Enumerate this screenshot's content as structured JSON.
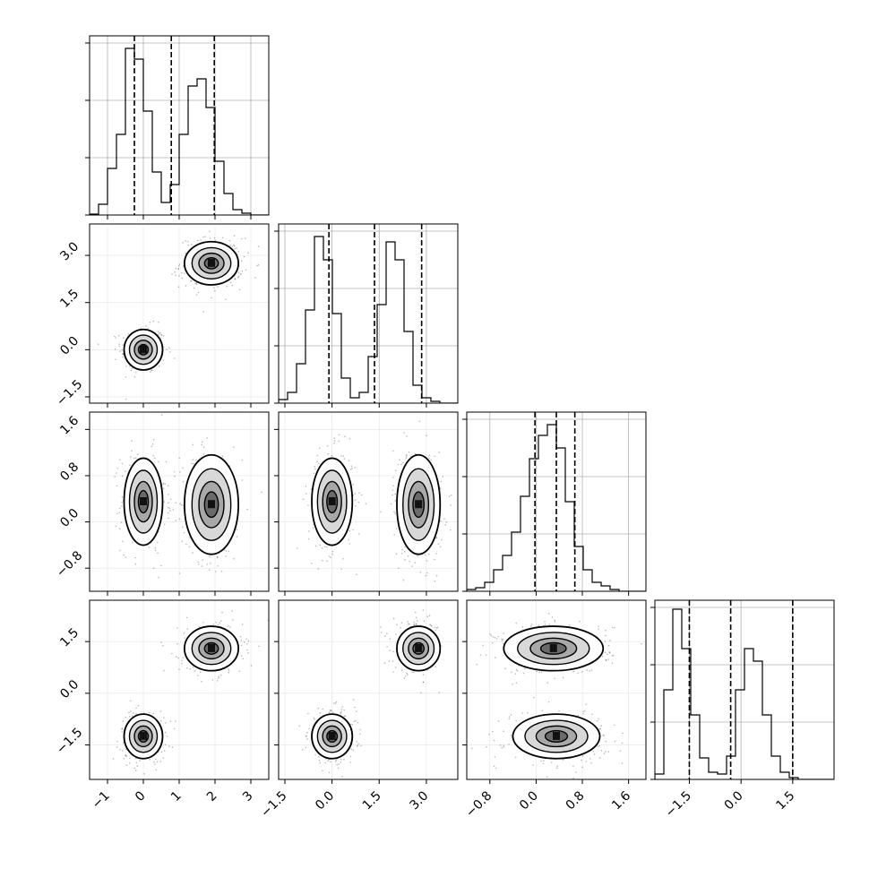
{
  "chart_data": {
    "type": "corner",
    "grid": true,
    "ranges": [
      [
        -1.5,
        3.5
      ],
      [
        -1.7,
        4.0
      ],
      [
        -1.2,
        1.9
      ],
      [
        -2.5,
        2.7
      ]
    ],
    "ticks": [
      {
        "values": [
          -1,
          0,
          1,
          2,
          3
        ],
        "labels": [
          "−1",
          "0",
          "1",
          "2",
          "3"
        ]
      },
      {
        "values": [
          -1.5,
          0.0,
          1.5,
          3.0
        ],
        "labels": [
          "−1.5",
          "0.0",
          "1.5",
          "3.0"
        ]
      },
      {
        "values": [
          -0.8,
          0.0,
          0.8,
          1.6
        ],
        "labels": [
          "−0.8",
          "0.0",
          "0.8",
          "1.6"
        ]
      },
      {
        "values": [
          -1.5,
          0.0,
          1.5
        ],
        "labels": [
          "−1.5",
          "0.0",
          "1.5"
        ]
      }
    ],
    "histograms": [
      {
        "bin_start": -1.5,
        "bin_width": 0.25,
        "counts": [
          0.005,
          0.06,
          0.26,
          0.45,
          0.93,
          0.87,
          0.58,
          0.24,
          0.07,
          0.17,
          0.45,
          0.72,
          0.76,
          0.6,
          0.3,
          0.12,
          0.03,
          0.01,
          0.0,
          0.0
        ],
        "quantiles": [
          -0.25,
          0.78,
          1.98
        ]
      },
      {
        "bin_start": -1.7,
        "bin_width": 0.285,
        "counts": [
          0.02,
          0.06,
          0.22,
          0.52,
          0.93,
          0.8,
          0.5,
          0.14,
          0.03,
          0.06,
          0.26,
          0.55,
          0.9,
          0.8,
          0.4,
          0.1,
          0.03,
          0.01,
          0.0,
          0.0
        ],
        "quantiles": [
          -0.1,
          1.35,
          2.85
        ]
      },
      {
        "bin_start": -1.2,
        "bin_width": 0.155,
        "counts": [
          0.01,
          0.02,
          0.05,
          0.12,
          0.2,
          0.33,
          0.53,
          0.74,
          0.87,
          0.93,
          0.8,
          0.5,
          0.25,
          0.12,
          0.05,
          0.03,
          0.01,
          0.0,
          0.0,
          0.0
        ],
        "quantiles": [
          -0.02,
          0.35,
          0.67
        ]
      },
      {
        "bin_start": -2.5,
        "bin_width": 0.26,
        "counts": [
          0.03,
          0.5,
          0.95,
          0.73,
          0.36,
          0.12,
          0.04,
          0.03,
          0.13,
          0.5,
          0.73,
          0.66,
          0.36,
          0.13,
          0.04,
          0.01,
          0.0,
          0.0,
          0.0,
          0.0
        ],
        "quantiles": [
          -1.5,
          -0.3,
          1.5
        ]
      }
    ],
    "mixture": [
      {
        "weight": 0.5,
        "mean": [
          0.0,
          0.0,
          0.35,
          -1.25
        ],
        "sd": [
          0.25,
          0.3,
          0.35,
          0.3
        ]
      },
      {
        "weight": 0.5,
        "mean": [
          1.9,
          2.75,
          0.3,
          1.3
        ],
        "sd": [
          0.35,
          0.32,
          0.4,
          0.3
        ]
      }
    ]
  }
}
